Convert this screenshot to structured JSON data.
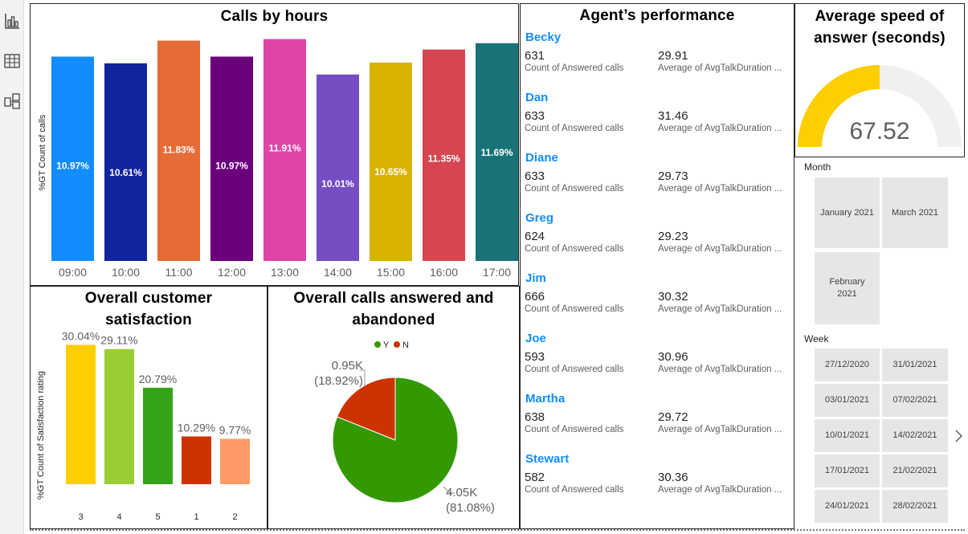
{
  "rail": {
    "icons": [
      "report-icon",
      "table-icon",
      "model-icon"
    ]
  },
  "calls_by_hours": {
    "title": "Calls by hours",
    "chart_data": {
      "type": "bar",
      "title": "Calls by hours",
      "ylabel": "%GT Count of calls",
      "categories": [
        "09:00",
        "10:00",
        "11:00",
        "12:00",
        "13:00",
        "14:00",
        "15:00",
        "16:00",
        "17:00"
      ],
      "values": [
        10.97,
        10.61,
        11.83,
        10.97,
        11.91,
        10.01,
        10.65,
        11.35,
        11.69
      ],
      "labels": [
        "10.97%",
        "10.61%",
        "11.83%",
        "10.97%",
        "11.91%",
        "10.01%",
        "10.65%",
        "11.35%",
        "11.69%"
      ],
      "colors": [
        "#118dff",
        "#12239e",
        "#e66c37",
        "#6b007b",
        "#e044a7",
        "#744ec2",
        "#d9b300",
        "#d64550",
        "#197278"
      ],
      "ylim": [
        0,
        12.5
      ],
      "grid": false
    }
  },
  "satisfaction": {
    "title_line1": "Overall customer",
    "title_line2": "satisfaction",
    "chart_data": {
      "type": "bar",
      "ylabel": "%GT Count of Satisfaction rating",
      "categories": [
        "3",
        "4",
        "5",
        "1",
        "2"
      ],
      "values": [
        30.04,
        29.11,
        20.79,
        10.29,
        9.77
      ],
      "labels": [
        "30.04%",
        "29.11%",
        "20.79%",
        "10.29%",
        "9.77%"
      ],
      "colors": [
        "#fdce00",
        "#9acd32",
        "#35a319",
        "#cc3300",
        "#ff9966"
      ],
      "ylim": [
        0,
        32
      ]
    }
  },
  "answered": {
    "title_line1": "Overall calls answered and",
    "title_line2": "abandoned",
    "chart_data": {
      "type": "pie",
      "legend": [
        {
          "name": "Y",
          "color": "#339900"
        },
        {
          "name": "N",
          "color": "#cc3300"
        }
      ],
      "slices": [
        {
          "name": "Y",
          "value": 4.05,
          "label": "4.05K",
          "pct": "(81.08%)",
          "share": 81.08,
          "color": "#339900"
        },
        {
          "name": "N",
          "value": 0.95,
          "label": "0.95K",
          "pct": "(18.92%)",
          "share": 18.92,
          "color": "#cc3300"
        }
      ]
    }
  },
  "agents": {
    "title": "Agent’s performance",
    "count_caption": "Count of Answered calls",
    "avg_caption": "Average of AvgTalkDuration ...",
    "list": [
      {
        "name": "Becky",
        "count": "631",
        "avg": "29.91"
      },
      {
        "name": "Dan",
        "count": "633",
        "avg": "31.46"
      },
      {
        "name": "Diane",
        "count": "633",
        "avg": "29.73"
      },
      {
        "name": "Greg",
        "count": "624",
        "avg": "29.23"
      },
      {
        "name": "Jim",
        "count": "666",
        "avg": "30.32"
      },
      {
        "name": "Joe",
        "count": "593",
        "avg": "30.96"
      },
      {
        "name": "Martha",
        "count": "638",
        "avg": "29.72"
      },
      {
        "name": "Stewart",
        "count": "582",
        "avg": "30.36"
      }
    ]
  },
  "speed": {
    "title_line1": "Average speed of",
    "title_line2": "answer (seconds)",
    "value": "67.52",
    "gauge_fraction": 0.5,
    "fill_color": "#fdce00",
    "track_color": "#f0f0f0"
  },
  "month_slicer": {
    "title": "Month",
    "items": [
      "January 2021",
      "March 2021",
      "February 2021"
    ]
  },
  "week_slicer": {
    "title": "Week",
    "items": [
      "27/12/2020",
      "31/01/2021",
      "03/01/2021",
      "07/02/2021",
      "10/01/2021",
      "14/02/2021",
      "17/01/2021",
      "21/02/2021",
      "24/01/2021",
      "28/02/2021"
    ]
  }
}
